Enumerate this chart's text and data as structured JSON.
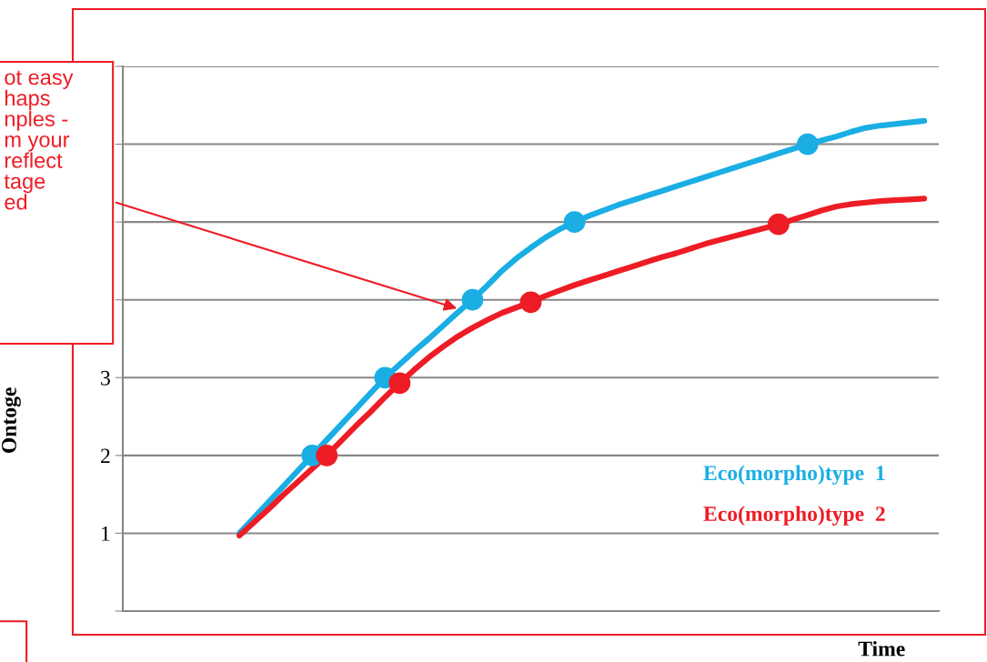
{
  "chart_data": {
    "type": "line",
    "xlabel": "Time",
    "ylabel": "Ontoge",
    "annotations": [
      "ot easy\nhaps\nnples -\nm your\nreflect\ntage\ned"
    ],
    "categories": [
      null,
      null,
      null,
      null,
      null,
      null,
      null,
      null,
      null,
      null,
      null,
      null,
      null,
      null,
      null,
      null,
      null,
      null,
      null,
      null,
      null,
      null,
      null,
      null,
      null,
      null,
      null,
      null,
      null,
      null,
      null,
      null,
      null,
      null,
      null,
      null,
      null,
      null,
      null,
      null,
      null,
      null,
      null,
      null,
      null,
      null,
      null,
      null,
      null,
      null,
      null,
      null,
      null,
      null,
      null,
      null,
      null
    ],
    "ylim": [
      0,
      7
    ],
    "yticks": [
      {
        "value": 0,
        "label": null
      },
      1,
      2,
      3,
      {
        "value": 4,
        "label": null
      },
      {
        "value": 5,
        "label": null
      },
      {
        "value": 6,
        "label": null
      },
      {
        "value": 7,
        "label": null
      }
    ],
    "grid": "y",
    "line_style": "solid",
    "series": [
      {
        "name": "Eco(morpho)type  1",
        "color": "#1aaee4",
        "values": [
          null,
          null,
          null,
          null,
          null,
          null,
          null,
          null,
          1.0,
          1.2,
          1.4,
          1.6,
          1.8,
          2.0,
          2.2,
          2.4,
          2.6,
          2.8,
          3.0,
          3.17,
          3.34,
          3.5,
          3.67,
          3.84,
          4.0,
          4.18,
          4.37,
          4.53,
          4.67,
          4.8,
          4.91,
          5.0,
          5.08,
          5.15,
          5.22,
          5.28,
          5.34,
          5.4,
          5.46,
          5.52,
          5.58,
          5.64,
          5.7,
          5.76,
          5.82,
          5.88,
          5.94,
          6.0,
          6.05,
          6.1,
          6.16,
          6.21,
          6.24,
          6.26,
          6.28,
          6.3,
          null
        ]
      },
      {
        "name": "Eco(morpho)type  2",
        "color": "#ee1c25",
        "values": [
          null,
          null,
          null,
          null,
          null,
          null,
          null,
          null,
          0.97,
          1.14,
          1.31,
          1.49,
          1.66,
          1.83,
          2.0,
          2.19,
          2.38,
          2.56,
          2.75,
          2.93,
          3.1,
          3.26,
          3.4,
          3.53,
          3.64,
          3.74,
          3.83,
          3.9,
          3.97,
          4.05,
          4.12,
          4.19,
          4.25,
          4.31,
          4.37,
          4.43,
          4.49,
          4.55,
          4.6,
          4.66,
          4.72,
          4.77,
          4.82,
          4.87,
          4.92,
          4.97,
          5.03,
          5.09,
          5.15,
          5.2,
          5.23,
          5.25,
          5.27,
          5.28,
          5.29,
          5.3,
          null
        ]
      },
      {
        "color": "#1aaee4",
        "type": "scatter",
        "marker": "circle",
        "values": [
          null,
          null,
          null,
          null,
          null,
          null,
          null,
          null,
          null,
          null,
          null,
          null,
          null,
          2.0,
          null,
          null,
          null,
          null,
          3.0,
          null,
          null,
          null,
          null,
          null,
          4.0,
          null,
          null,
          null,
          null,
          null,
          null,
          5.0,
          null,
          null,
          null,
          null,
          null,
          null,
          null,
          null,
          null,
          null,
          null,
          null,
          null,
          null,
          null,
          6.0,
          null,
          null,
          null,
          null,
          null,
          null,
          null,
          null,
          null
        ]
      },
      {
        "color": "#ee1c25",
        "type": "scatter",
        "marker": "circle",
        "values": [
          null,
          null,
          null,
          null,
          null,
          null,
          null,
          null,
          null,
          null,
          null,
          null,
          null,
          null,
          2.0,
          null,
          null,
          null,
          null,
          2.93,
          null,
          null,
          null,
          null,
          null,
          null,
          null,
          null,
          3.97,
          null,
          null,
          null,
          null,
          null,
          null,
          null,
          null,
          null,
          null,
          null,
          null,
          null,
          null,
          null,
          null,
          4.97,
          null,
          null,
          null,
          null,
          null,
          null,
          null,
          null,
          null,
          null,
          null
        ]
      }
    ]
  }
}
